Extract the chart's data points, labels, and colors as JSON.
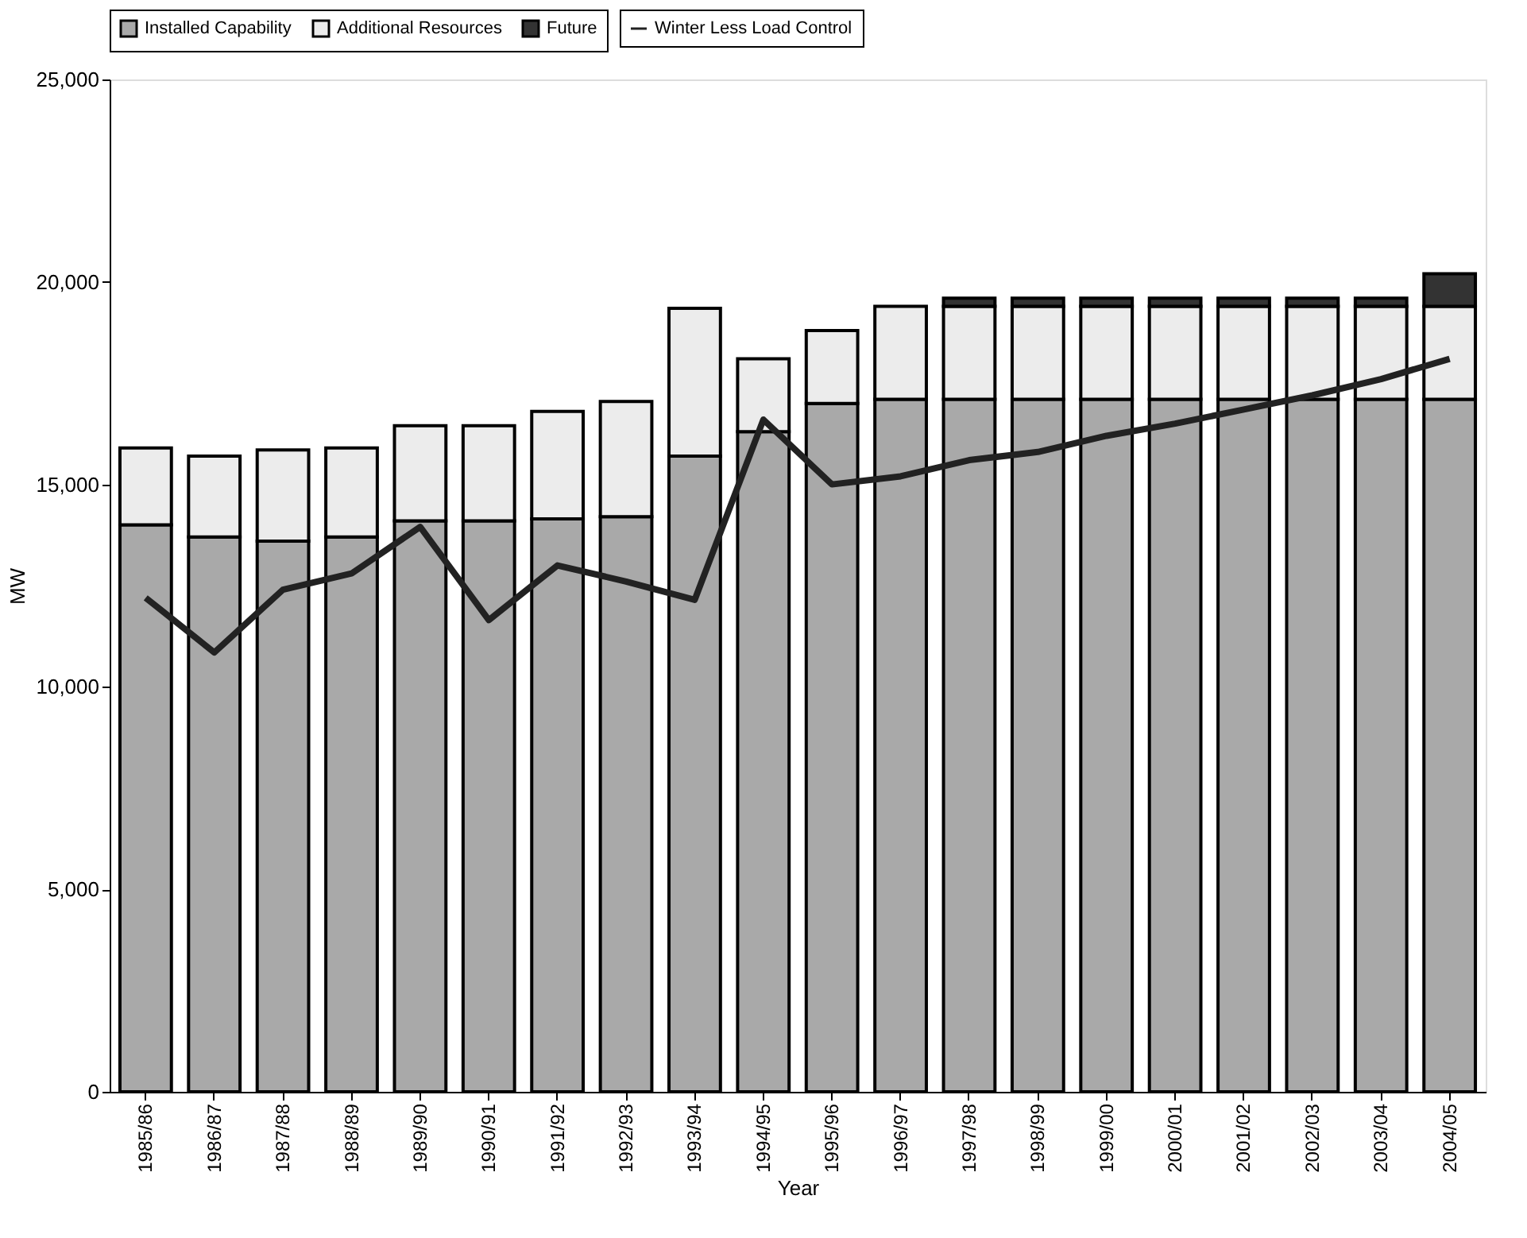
{
  "chart_data": {
    "type": "bar",
    "stacked": true,
    "xlabel": "Year",
    "ylabel": "MW",
    "categories": [
      "1985/86",
      "1986/87",
      "1987/88",
      "1988/89",
      "1989/90",
      "1990/91",
      "1991/92",
      "1992/93",
      "1993/94",
      "1994/95",
      "1995/96",
      "1996/97",
      "1997/98",
      "1998/99",
      "1999/00",
      "2000/01",
      "2001/02",
      "2002/03",
      "2003/04",
      "2004/05"
    ],
    "series": [
      {
        "name": "Installed Capability",
        "color": "#a9a9a9",
        "values": [
          14000,
          13700,
          13600,
          13700,
          14100,
          14100,
          14150,
          14200,
          15700,
          16300,
          17000,
          17100,
          17100,
          17100,
          17100,
          17100,
          17100,
          17100,
          17100,
          17100
        ]
      },
      {
        "name": "Additional Resources",
        "color": "#ececec",
        "values": [
          1900,
          2000,
          2250,
          2200,
          2350,
          2350,
          2650,
          2850,
          3650,
          1800,
          1800,
          2300,
          2300,
          2300,
          2300,
          2300,
          2300,
          2300,
          2300,
          2300
        ]
      },
      {
        "name": "Future",
        "color": "#333333",
        "values": [
          null,
          null,
          null,
          null,
          null,
          null,
          null,
          null,
          null,
          null,
          null,
          null,
          200,
          200,
          200,
          200,
          200,
          200,
          200,
          800
        ]
      },
      {
        "name": "Winter Less Load Control",
        "type": "line",
        "color": "#222222",
        "values": [
          12200,
          10850,
          12400,
          12800,
          13950,
          11650,
          13000,
          12600,
          12150,
          16600,
          15000,
          15200,
          15600,
          15800,
          16200,
          16500,
          16850,
          17200,
          17600,
          18100
        ]
      }
    ],
    "ylim": [
      0,
      25000
    ],
    "yticks": [
      0,
      {
        "value": 5000,
        "label": "5,000"
      },
      {
        "value": 10000,
        "label": "10,000"
      },
      {
        "value": 15000,
        "label": "15,000"
      },
      {
        "value": 20000,
        "label": "20,000"
      },
      {
        "value": 25000,
        "label": "25,000"
      }
    ],
    "grid": false,
    "legend": "top"
  }
}
